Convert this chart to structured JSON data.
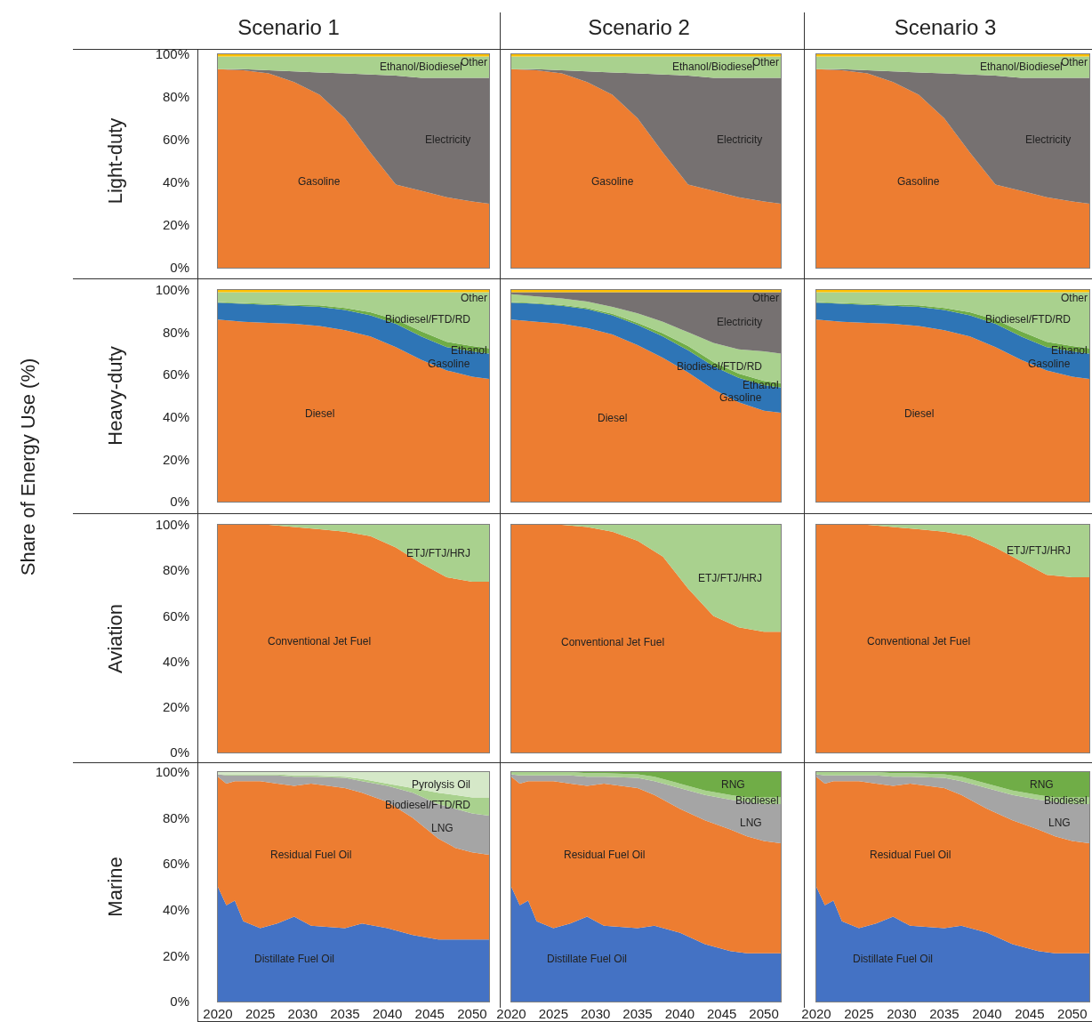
{
  "chart_data": [
    {
      "type": "area",
      "stacked": true,
      "title": "Scenario 1",
      "ylabel": "Light-duty",
      "annotations": [
        "Share of Energy Use (%)"
      ],
      "x": [
        2020,
        2023,
        2026,
        2029,
        2032,
        2035,
        2038,
        2041,
        2044,
        2047,
        2050,
        2052
      ],
      "xlim": [
        2020,
        2052
      ],
      "ylim": [
        0,
        100
      ],
      "yticks": [
        {
          "value": 0,
          "label": "0%"
        },
        {
          "value": 20,
          "label": "20%"
        },
        {
          "value": 40,
          "label": "40%"
        },
        {
          "value": 60,
          "label": "60%"
        },
        {
          "value": 80,
          "label": "80%"
        },
        {
          "value": 100,
          "label": "100%"
        }
      ],
      "tick_labels": "y",
      "series": [
        {
          "name": "Gasoline",
          "color": "#ed7d31",
          "values": [
            93,
            92.5,
            91,
            87,
            81,
            70,
            54,
            39,
            36,
            33,
            31,
            30
          ]
        },
        {
          "name": "Electricity",
          "color": "#767171",
          "values": [
            0,
            0.5,
            1.5,
            5,
            10.5,
            21,
            36.5,
            51,
            53,
            56,
            58,
            59
          ]
        },
        {
          "name": "Ethanol/Biodiesel",
          "color": "#a9d18e",
          "values": [
            6,
            6,
            6.5,
            7,
            7.5,
            8,
            8.5,
            9,
            10,
            10,
            10,
            10
          ]
        },
        {
          "name": "Other",
          "color": "#ffc000",
          "values": [
            1,
            1,
            1,
            1,
            1,
            1,
            1,
            1,
            1,
            1,
            1,
            1
          ]
        }
      ]
    },
    {
      "type": "area",
      "stacked": true,
      "title": "Scenario 2",
      "x": [
        2020,
        2023,
        2026,
        2029,
        2032,
        2035,
        2038,
        2041,
        2044,
        2047,
        2050,
        2052
      ],
      "xlim": [
        2020,
        2052
      ],
      "ylim": [
        0,
        100
      ],
      "tick_labels": false,
      "series": [
        {
          "name": "Gasoline",
          "color": "#ed7d31",
          "values": [
            93,
            92.5,
            91,
            87,
            81,
            70,
            54,
            39,
            36,
            33,
            31,
            30
          ]
        },
        {
          "name": "Electricity",
          "color": "#767171",
          "values": [
            0,
            0.5,
            1.5,
            5,
            10.5,
            21,
            36.5,
            51,
            53,
            56,
            58,
            59
          ]
        },
        {
          "name": "Ethanol/Biodiesel",
          "color": "#a9d18e",
          "values": [
            6,
            6,
            6.5,
            7,
            7.5,
            8,
            8.5,
            9,
            10,
            10,
            10,
            10
          ]
        },
        {
          "name": "Other",
          "color": "#ffc000",
          "values": [
            1,
            1,
            1,
            1,
            1,
            1,
            1,
            1,
            1,
            1,
            1,
            1
          ]
        }
      ]
    },
    {
      "type": "area",
      "stacked": true,
      "title": "Scenario 3",
      "x": [
        2020,
        2023,
        2026,
        2029,
        2032,
        2035,
        2038,
        2041,
        2044,
        2047,
        2050,
        2052
      ],
      "xlim": [
        2020,
        2052
      ],
      "ylim": [
        0,
        100
      ],
      "tick_labels": false,
      "series": [
        {
          "name": "Gasoline",
          "color": "#ed7d31",
          "values": [
            93,
            92.5,
            91,
            87,
            81,
            70,
            54,
            39,
            36,
            33,
            31,
            30
          ]
        },
        {
          "name": "Electricity",
          "color": "#767171",
          "values": [
            0,
            0.5,
            1.5,
            5,
            10.5,
            21,
            36.5,
            51,
            53,
            56,
            58,
            59
          ]
        },
        {
          "name": "Ethanol/Biodiesel",
          "color": "#a9d18e",
          "values": [
            6,
            6,
            6.5,
            7,
            7.5,
            8,
            8.5,
            9,
            10,
            10,
            10,
            10
          ]
        },
        {
          "name": "Other",
          "color": "#ffc000",
          "values": [
            1,
            1,
            1,
            1,
            1,
            1,
            1,
            1,
            1,
            1,
            1,
            1
          ]
        }
      ]
    },
    {
      "type": "area",
      "stacked": true,
      "ylabel": "Heavy-duty",
      "x": [
        2020,
        2023,
        2026,
        2029,
        2032,
        2035,
        2038,
        2041,
        2044,
        2047,
        2050,
        2052
      ],
      "xlim": [
        2020,
        2052
      ],
      "ylim": [
        0,
        100
      ],
      "yticks": [
        {
          "value": 0,
          "label": "0%"
        },
        {
          "value": 20,
          "label": "20%"
        },
        {
          "value": 40,
          "label": "40%"
        },
        {
          "value": 60,
          "label": "60%"
        },
        {
          "value": 80,
          "label": "80%"
        },
        {
          "value": 100,
          "label": "100%"
        }
      ],
      "tick_labels": "y",
      "series": [
        {
          "name": "Diesel",
          "color": "#ed7d31",
          "values": [
            86,
            85,
            84.5,
            84,
            83,
            81,
            78,
            73,
            67,
            62,
            59,
            58
          ]
        },
        {
          "name": "Gasoline",
          "color": "#2e75b6",
          "values": [
            8,
            8.5,
            8.5,
            8.5,
            9,
            9.5,
            10,
            11,
            11,
            11,
            12,
            12
          ]
        },
        {
          "name": "Ethanol",
          "color": "#70ad47",
          "values": [
            0.3,
            0.3,
            0.5,
            0.5,
            0.8,
            1,
            1.5,
            2,
            2.5,
            2.5,
            2.5,
            2.5
          ]
        },
        {
          "name": "Biodiesel/FTD/RD",
          "color": "#a9d18e",
          "values": [
            4.7,
            5.2,
            5.5,
            6,
            6.2,
            7.5,
            9.5,
            13,
            18.5,
            23.5,
            25.5,
            26.5
          ]
        },
        {
          "name": "Other",
          "color": "#ffc000",
          "values": [
            1,
            1,
            1,
            1,
            1,
            1,
            1,
            1,
            1,
            1,
            1,
            1
          ]
        }
      ]
    },
    {
      "type": "area",
      "stacked": true,
      "x": [
        2020,
        2023,
        2026,
        2029,
        2032,
        2035,
        2038,
        2041,
        2044,
        2047,
        2050,
        2052
      ],
      "xlim": [
        2020,
        2052
      ],
      "ylim": [
        0,
        100
      ],
      "tick_labels": false,
      "series": [
        {
          "name": "Diesel",
          "color": "#ed7d31",
          "values": [
            86,
            85,
            84,
            82,
            79,
            74,
            68,
            61,
            53,
            47,
            43,
            42
          ]
        },
        {
          "name": "Gasoline",
          "color": "#2e75b6",
          "values": [
            8,
            8.5,
            8.5,
            9,
            9,
            9.5,
            10,
            10.5,
            11,
            11.5,
            12,
            12
          ]
        },
        {
          "name": "Ethanol",
          "color": "#70ad47",
          "values": [
            0.3,
            0.3,
            0.5,
            0.5,
            0.8,
            1,
            1.5,
            2,
            2,
            2,
            2,
            2
          ]
        },
        {
          "name": "Biodiesel/FTD/RD",
          "color": "#a9d18e",
          "values": [
            3.7,
            3.2,
            3,
            3,
            3.2,
            4.5,
            5.5,
            6.5,
            9,
            11.5,
            14,
            14
          ]
        },
        {
          "name": "Electricity",
          "color": "#767171",
          "values": [
            1,
            2,
            3,
            4.5,
            7,
            10,
            14,
            19,
            24,
            27,
            28,
            29
          ]
        },
        {
          "name": "Other",
          "color": "#ffc000",
          "values": [
            1,
            1,
            1,
            1,
            1,
            1,
            1,
            1,
            1,
            1,
            1,
            1
          ]
        }
      ]
    },
    {
      "type": "area",
      "stacked": true,
      "x": [
        2020,
        2023,
        2026,
        2029,
        2032,
        2035,
        2038,
        2041,
        2044,
        2047,
        2050,
        2052
      ],
      "xlim": [
        2020,
        2052
      ],
      "ylim": [
        0,
        100
      ],
      "tick_labels": false,
      "series": [
        {
          "name": "Diesel",
          "color": "#ed7d31",
          "values": [
            86,
            85,
            84.5,
            84,
            83,
            81,
            78,
            73,
            67,
            62,
            59,
            58
          ]
        },
        {
          "name": "Gasoline",
          "color": "#2e75b6",
          "values": [
            8,
            8.5,
            8.5,
            8.5,
            9,
            9.5,
            10,
            11,
            11,
            11,
            12,
            12
          ]
        },
        {
          "name": "Ethanol",
          "color": "#70ad47",
          "values": [
            0.3,
            0.3,
            0.5,
            0.5,
            0.8,
            1,
            1.5,
            2,
            2.5,
            2.5,
            2.5,
            2.5
          ]
        },
        {
          "name": "Biodiesel/FTD/RD",
          "color": "#a9d18e",
          "values": [
            4.7,
            5.2,
            5.5,
            6,
            6.2,
            7.5,
            9.5,
            13,
            18.5,
            23.5,
            25.5,
            26.5
          ]
        },
        {
          "name": "Other",
          "color": "#ffc000",
          "values": [
            1,
            1,
            1,
            1,
            1,
            1,
            1,
            1,
            1,
            1,
            1,
            1
          ]
        }
      ]
    },
    {
      "type": "area",
      "stacked": true,
      "ylabel": "Aviation",
      "x": [
        2020,
        2023,
        2026,
        2029,
        2032,
        2035,
        2038,
        2041,
        2044,
        2047,
        2050,
        2052
      ],
      "xlim": [
        2020,
        2052
      ],
      "ylim": [
        0,
        100
      ],
      "yticks": [
        {
          "value": 0,
          "label": "0%"
        },
        {
          "value": 20,
          "label": "20%"
        },
        {
          "value": 40,
          "label": "40%"
        },
        {
          "value": 60,
          "label": "60%"
        },
        {
          "value": 80,
          "label": "80%"
        },
        {
          "value": 100,
          "label": "100%"
        }
      ],
      "tick_labels": "y",
      "series": [
        {
          "name": "Conventional Jet Fuel",
          "color": "#ed7d31",
          "values": [
            100,
            100,
            100,
            99,
            98,
            97,
            95,
            90,
            83,
            77,
            75,
            75
          ]
        },
        {
          "name": "ETJ/FTJ/HRJ",
          "color": "#a9d18e",
          "values": [
            0,
            0,
            0,
            1,
            2,
            3,
            5,
            10,
            17,
            23,
            25,
            25
          ]
        }
      ]
    },
    {
      "type": "area",
      "stacked": true,
      "x": [
        2020,
        2023,
        2026,
        2029,
        2032,
        2035,
        2038,
        2041,
        2044,
        2047,
        2050,
        2052
      ],
      "xlim": [
        2020,
        2052
      ],
      "ylim": [
        0,
        100
      ],
      "tick_labels": false,
      "series": [
        {
          "name": "Conventional Jet Fuel",
          "color": "#ed7d31",
          "values": [
            100,
            100,
            100,
            99,
            97,
            93,
            86,
            72,
            60,
            55,
            53,
            53
          ]
        },
        {
          "name": "ETJ/FTJ/HRJ",
          "color": "#a9d18e",
          "values": [
            0,
            0,
            0,
            1,
            3,
            7,
            14,
            28,
            40,
            45,
            47,
            47
          ]
        }
      ]
    },
    {
      "type": "area",
      "stacked": true,
      "x": [
        2020,
        2023,
        2026,
        2029,
        2032,
        2035,
        2038,
        2041,
        2044,
        2047,
        2050,
        2052
      ],
      "xlim": [
        2020,
        2052
      ],
      "ylim": [
        0,
        100
      ],
      "tick_labels": false,
      "series": [
        {
          "name": "Conventional Jet Fuel",
          "color": "#ed7d31",
          "values": [
            100,
            100,
            100,
            99,
            98,
            97,
            95,
            90,
            84,
            78,
            77,
            77
          ]
        },
        {
          "name": "ETJ/FTJ/HRJ",
          "color": "#a9d18e",
          "values": [
            0,
            0,
            0,
            1,
            2,
            3,
            5,
            10,
            16,
            22,
            23,
            23
          ]
        }
      ]
    },
    {
      "type": "area",
      "stacked": true,
      "ylabel": "Marine",
      "x": [
        2020,
        2021,
        2022,
        2023,
        2025,
        2027,
        2029,
        2031,
        2035,
        2037,
        2040,
        2043,
        2046,
        2048,
        2050,
        2052
      ],
      "xlim": [
        2020,
        2052
      ],
      "xticks": [
        2020,
        2025,
        2030,
        2035,
        2040,
        2045,
        2050
      ],
      "ylim": [
        0,
        100
      ],
      "yticks": [
        {
          "value": 0,
          "label": "0%"
        },
        {
          "value": 20,
          "label": "20%"
        },
        {
          "value": 40,
          "label": "40%"
        },
        {
          "value": 60,
          "label": "60%"
        },
        {
          "value": 80,
          "label": "80%"
        },
        {
          "value": 100,
          "label": "100%"
        }
      ],
      "series": [
        {
          "name": "Distillate Fuel Oil",
          "color": "#4472c4",
          "values": [
            50,
            42,
            44,
            35,
            32,
            34,
            37,
            33,
            32,
            34,
            32,
            29,
            27,
            27,
            27,
            27
          ]
        },
        {
          "name": "Residual Fuel Oil",
          "color": "#ed7d31",
          "values": [
            48,
            53,
            52,
            61,
            64,
            61,
            57,
            62,
            61,
            57,
            55,
            51,
            44,
            40,
            38,
            37
          ]
        },
        {
          "name": "LNG",
          "color": "#a5a5a5",
          "values": [
            1,
            3.5,
            2.5,
            2.5,
            2.5,
            3.5,
            4,
            3,
            4.5,
            5,
            7,
            11,
            15,
            17,
            17,
            17
          ]
        },
        {
          "name": "Biodiesel/FTD/RD",
          "color": "#a9d18e",
          "values": [
            0,
            0.5,
            0.5,
            0.5,
            0.5,
            0.5,
            0.5,
            0.5,
            0.5,
            1,
            1,
            2,
            5,
            6,
            7,
            8
          ]
        },
        {
          "name": "Pyrolysis Oil",
          "color": "#d5e8c8",
          "values": [
            1,
            1,
            1,
            1,
            1,
            1,
            1.5,
            1.5,
            2,
            3,
            5,
            7,
            9,
            10,
            11,
            11
          ]
        }
      ]
    },
    {
      "type": "area",
      "stacked": true,
      "x": [
        2020,
        2021,
        2022,
        2023,
        2025,
        2027,
        2029,
        2031,
        2035,
        2037,
        2040,
        2043,
        2046,
        2048,
        2050,
        2052
      ],
      "xlim": [
        2020,
        2052
      ],
      "xticks": [
        2020,
        2025,
        2030,
        2035,
        2040,
        2045,
        2050
      ],
      "ylim": [
        0,
        100
      ],
      "tick_labels": "x",
      "series": [
        {
          "name": "Distillate Fuel Oil",
          "color": "#4472c4",
          "values": [
            50,
            42,
            44,
            35,
            32,
            34,
            37,
            33,
            32,
            33,
            30,
            25,
            22,
            21,
            21,
            21
          ]
        },
        {
          "name": "Residual Fuel Oil",
          "color": "#ed7d31",
          "values": [
            48,
            53,
            52,
            61,
            64,
            61,
            57,
            62,
            61,
            57,
            54,
            54,
            53,
            51,
            49,
            48
          ]
        },
        {
          "name": "LNG",
          "color": "#a5a5a5",
          "values": [
            1,
            3.5,
            2.5,
            2.5,
            2.5,
            3.5,
            4,
            3,
            4.5,
            6,
            9,
            11,
            13,
            15,
            16,
            17
          ]
        },
        {
          "name": "Biodiesel",
          "color": "#a9d18e",
          "values": [
            1,
            1.5,
            1.5,
            1.5,
            1.5,
            1.5,
            1.5,
            1.5,
            1.5,
            2,
            2,
            2,
            2,
            2,
            3,
            3
          ]
        },
        {
          "name": "RNG",
          "color": "#70ad47",
          "values": [
            0,
            0,
            0,
            0,
            0,
            0,
            0.5,
            0.5,
            1,
            2,
            5,
            8,
            10,
            11,
            11,
            11
          ]
        }
      ]
    },
    {
      "type": "area",
      "stacked": true,
      "x": [
        2020,
        2021,
        2022,
        2023,
        2025,
        2027,
        2029,
        2031,
        2035,
        2037,
        2040,
        2043,
        2046,
        2048,
        2050,
        2052
      ],
      "xlim": [
        2020,
        2052
      ],
      "xticks": [
        2020,
        2025,
        2030,
        2035,
        2040,
        2045,
        2050
      ],
      "ylim": [
        0,
        100
      ],
      "tick_labels": "x",
      "series": [
        {
          "name": "Distillate Fuel Oil",
          "color": "#4472c4",
          "values": [
            50,
            42,
            44,
            35,
            32,
            34,
            37,
            33,
            32,
            33,
            30,
            25,
            22,
            21,
            21,
            21
          ]
        },
        {
          "name": "Residual Fuel Oil",
          "color": "#ed7d31",
          "values": [
            48,
            53,
            52,
            61,
            64,
            61,
            57,
            62,
            61,
            57,
            54,
            54,
            53,
            51,
            49,
            48
          ]
        },
        {
          "name": "LNG",
          "color": "#a5a5a5",
          "values": [
            1,
            3.5,
            2.5,
            2.5,
            2.5,
            3.5,
            4,
            3,
            4.5,
            6,
            9,
            11,
            13,
            15,
            16,
            17
          ]
        },
        {
          "name": "Biodiesel",
          "color": "#a9d18e",
          "values": [
            1,
            1.5,
            1.5,
            1.5,
            1.5,
            1.5,
            1.5,
            1.5,
            1.5,
            2,
            2,
            2,
            2,
            2,
            3,
            3
          ]
        },
        {
          "name": "RNG",
          "color": "#70ad47",
          "values": [
            0,
            0,
            0,
            0,
            0,
            0,
            0.5,
            0.5,
            1,
            2,
            5,
            8,
            10,
            11,
            11,
            11
          ]
        }
      ]
    }
  ]
}
